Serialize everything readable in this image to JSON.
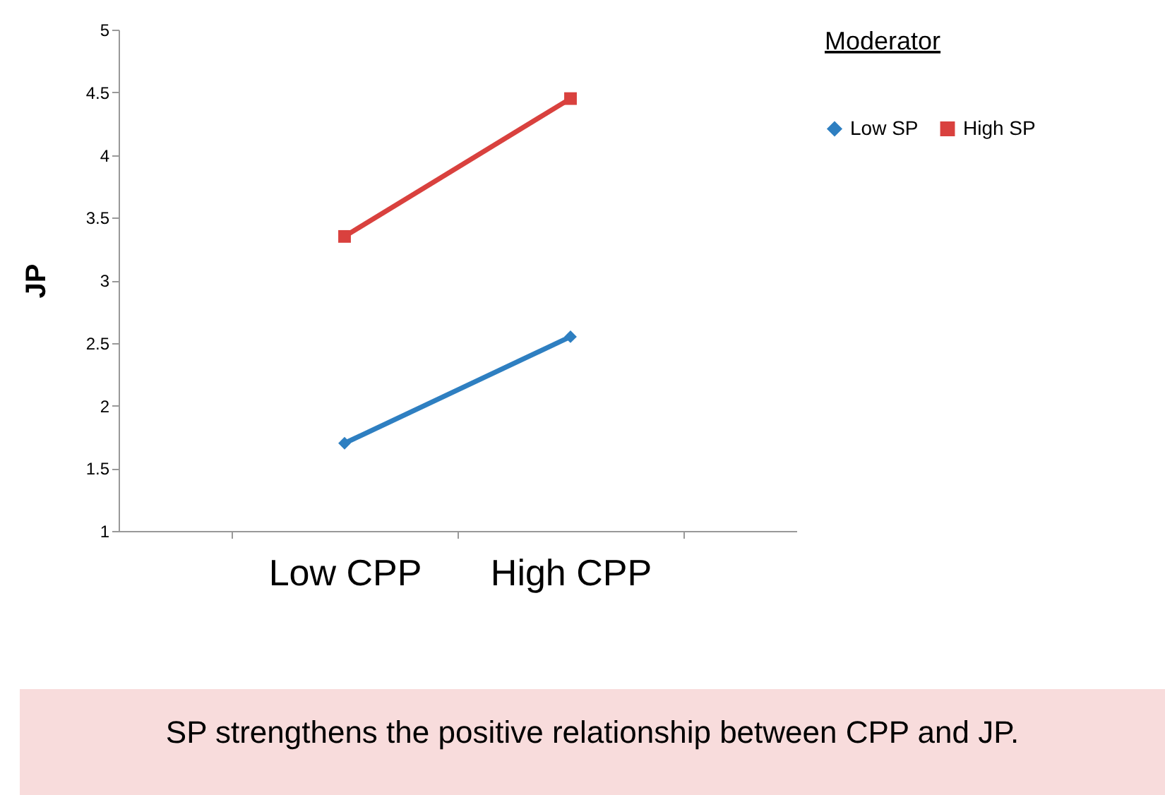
{
  "chart_data": {
    "type": "line",
    "ylabel": "JP",
    "legend_title": "Moderator",
    "categories": [
      "Low CPP",
      "High CPP"
    ],
    "series": [
      {
        "name": "Low SP",
        "color": "#2e7fc1",
        "marker": "diamond",
        "values": [
          1.7,
          2.55
        ]
      },
      {
        "name": "High SP",
        "color": "#d9413e",
        "marker": "square",
        "values": [
          3.35,
          4.45
        ]
      }
    ],
    "ylim": [
      1,
      5
    ],
    "yticks": [
      1,
      1.5,
      2,
      2.5,
      3,
      3.5,
      4,
      4.5,
      5
    ],
    "grid": false,
    "legend": "right",
    "line_style": "solid",
    "annotations": [
      "SP strengthens the positive relationship between CPP and JP."
    ]
  }
}
